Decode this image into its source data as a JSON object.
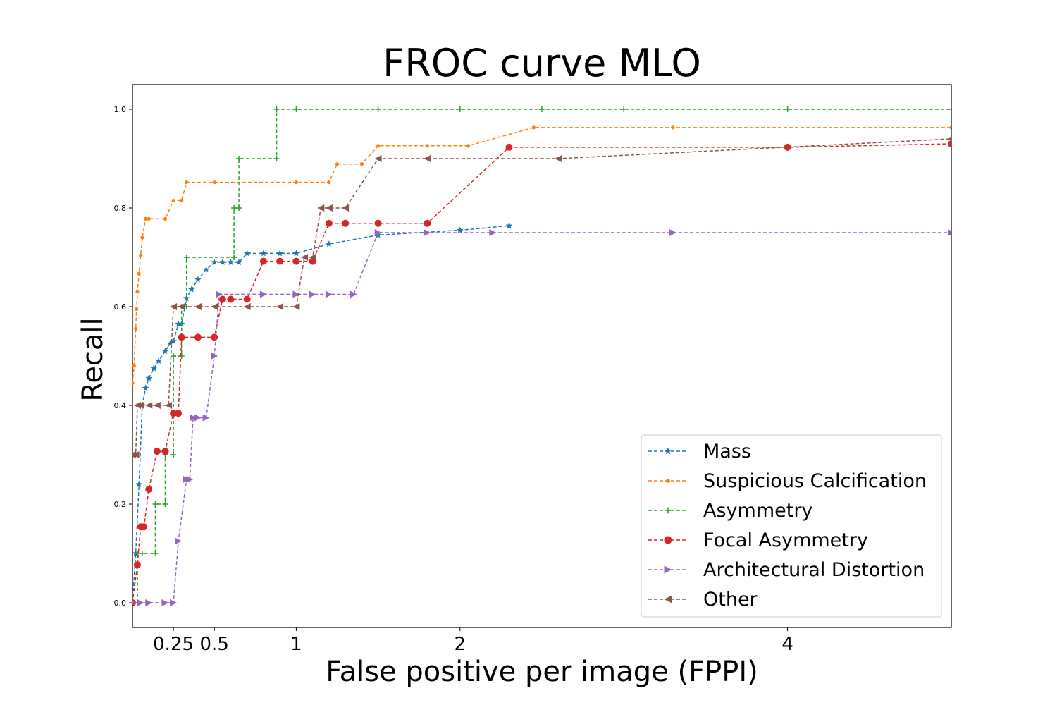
{
  "chart_data": {
    "type": "line",
    "title": "FROC curve MLO",
    "xlabel": "False positive per image (FPPI)",
    "ylabel": "Recall",
    "xlim": [
      0,
      5
    ],
    "ylim": [
      -0.05,
      1.05
    ],
    "x_ticks": [
      {
        "value": 0.25,
        "label": "0.25"
      },
      {
        "value": 0.5,
        "label": "0.5"
      },
      {
        "value": 1,
        "label": "1"
      },
      {
        "value": 2,
        "label": "2"
      },
      {
        "value": 4,
        "label": "4"
      }
    ],
    "y_ticks": [
      {
        "value": 0.0,
        "label": "0.0"
      },
      {
        "value": 0.2,
        "label": "0.2"
      },
      {
        "value": 0.4,
        "label": "0.4"
      },
      {
        "value": 0.6,
        "label": "0.6"
      },
      {
        "value": 0.8,
        "label": "0.8"
      },
      {
        "value": 1.0,
        "label": "1.0"
      }
    ],
    "grid": false,
    "legend_position": "lower-right",
    "series": [
      {
        "name": "Mass",
        "color": "#1f77b4",
        "marker": "star",
        "x": [
          0.0,
          0.02,
          0.04,
          0.06,
          0.08,
          0.1,
          0.13,
          0.16,
          0.2,
          0.23,
          0.25,
          0.28,
          0.3,
          0.33,
          0.36,
          0.4,
          0.45,
          0.5,
          0.55,
          0.6,
          0.65,
          0.7,
          0.8,
          0.9,
          1.0,
          1.2,
          1.5,
          2.0,
          2.3
        ],
        "y": [
          0.0,
          0.1,
          0.24,
          0.4,
          0.435,
          0.455,
          0.475,
          0.49,
          0.51,
          0.525,
          0.53,
          0.565,
          0.565,
          0.617,
          0.635,
          0.655,
          0.675,
          0.69,
          0.69,
          0.69,
          0.69,
          0.708,
          0.708,
          0.708,
          0.708,
          0.727,
          0.745,
          0.755,
          0.764
        ]
      },
      {
        "name": "Suspicious Calcification",
        "color": "#ff7f0e",
        "marker": "point",
        "x": [
          0.0,
          0.01,
          0.02,
          0.025,
          0.03,
          0.04,
          0.05,
          0.06,
          0.08,
          0.1,
          0.2,
          0.25,
          0.3,
          0.33,
          0.5,
          1.0,
          1.2,
          1.25,
          1.4,
          1.5,
          1.8,
          2.05,
          2.45,
          3.3,
          5.0
        ],
        "y": [
          0.445,
          0.48,
          0.555,
          0.595,
          0.63,
          0.667,
          0.704,
          0.74,
          0.778,
          0.778,
          0.778,
          0.815,
          0.815,
          0.852,
          0.852,
          0.852,
          0.852,
          0.889,
          0.889,
          0.926,
          0.926,
          0.926,
          0.963,
          0.963,
          0.963
        ]
      },
      {
        "name": "Asymmetry",
        "color": "#2ca02c",
        "marker": "plus",
        "x": [
          0.03,
          0.03,
          0.06,
          0.14,
          0.14,
          0.2,
          0.2,
          0.25,
          0.25,
          0.3,
          0.3,
          0.33,
          0.33,
          0.62,
          0.62,
          0.65,
          0.65,
          0.88,
          0.88,
          1.0,
          1.5,
          2.0,
          2.5,
          3.0,
          4.0,
          5.0
        ],
        "y": [
          0.0,
          0.1,
          0.1,
          0.1,
          0.2,
          0.2,
          0.3,
          0.3,
          0.5,
          0.5,
          0.6,
          0.6,
          0.7,
          0.7,
          0.8,
          0.8,
          0.9,
          0.9,
          1.0,
          1.0,
          1.0,
          1.0,
          1.0,
          1.0,
          1.0,
          1.0
        ]
      },
      {
        "name": "Focal Asymmetry",
        "color": "#d62728",
        "marker": "circle",
        "x": [
          0.0,
          0.03,
          0.05,
          0.07,
          0.1,
          0.15,
          0.2,
          0.25,
          0.28,
          0.3,
          0.4,
          0.5,
          0.55,
          0.6,
          0.7,
          0.8,
          0.9,
          1.0,
          1.1,
          1.2,
          1.3,
          1.5,
          1.8,
          2.3,
          4.0,
          5.0
        ],
        "y": [
          0.0,
          0.077,
          0.154,
          0.154,
          0.23,
          0.307,
          0.307,
          0.384,
          0.384,
          0.538,
          0.538,
          0.538,
          0.615,
          0.615,
          0.615,
          0.692,
          0.692,
          0.692,
          0.692,
          0.769,
          0.769,
          0.769,
          0.769,
          0.923,
          0.923,
          0.93
        ]
      },
      {
        "name": "Architectural Distortion",
        "color": "#9467bd",
        "marker": "triangle-right",
        "x": [
          0.0,
          0.05,
          0.1,
          0.2,
          0.25,
          0.28,
          0.33,
          0.35,
          0.37,
          0.4,
          0.45,
          0.5,
          0.53,
          0.8,
          1.0,
          1.1,
          1.2,
          1.35,
          1.5,
          1.8,
          2.2,
          3.3,
          5.0
        ],
        "y": [
          0.0,
          0.0,
          0.0,
          0.0,
          0.0,
          0.125,
          0.25,
          0.25,
          0.375,
          0.375,
          0.375,
          0.5,
          0.625,
          0.625,
          0.625,
          0.625,
          0.625,
          0.625,
          0.75,
          0.75,
          0.75,
          0.75,
          0.75
        ]
      },
      {
        "name": "Other",
        "color": "#8c564b",
        "marker": "triangle-left",
        "x": [
          0.0,
          0.02,
          0.03,
          0.05,
          0.1,
          0.15,
          0.22,
          0.25,
          0.3,
          0.4,
          0.5,
          0.7,
          0.9,
          1.0,
          1.05,
          1.1,
          1.15,
          1.2,
          1.3,
          1.5,
          1.8,
          2.6,
          5.0
        ],
        "y": [
          0.3,
          0.3,
          0.4,
          0.4,
          0.4,
          0.4,
          0.4,
          0.6,
          0.6,
          0.6,
          0.6,
          0.6,
          0.6,
          0.6,
          0.7,
          0.7,
          0.8,
          0.8,
          0.8,
          0.9,
          0.9,
          0.9,
          0.94
        ]
      }
    ]
  }
}
